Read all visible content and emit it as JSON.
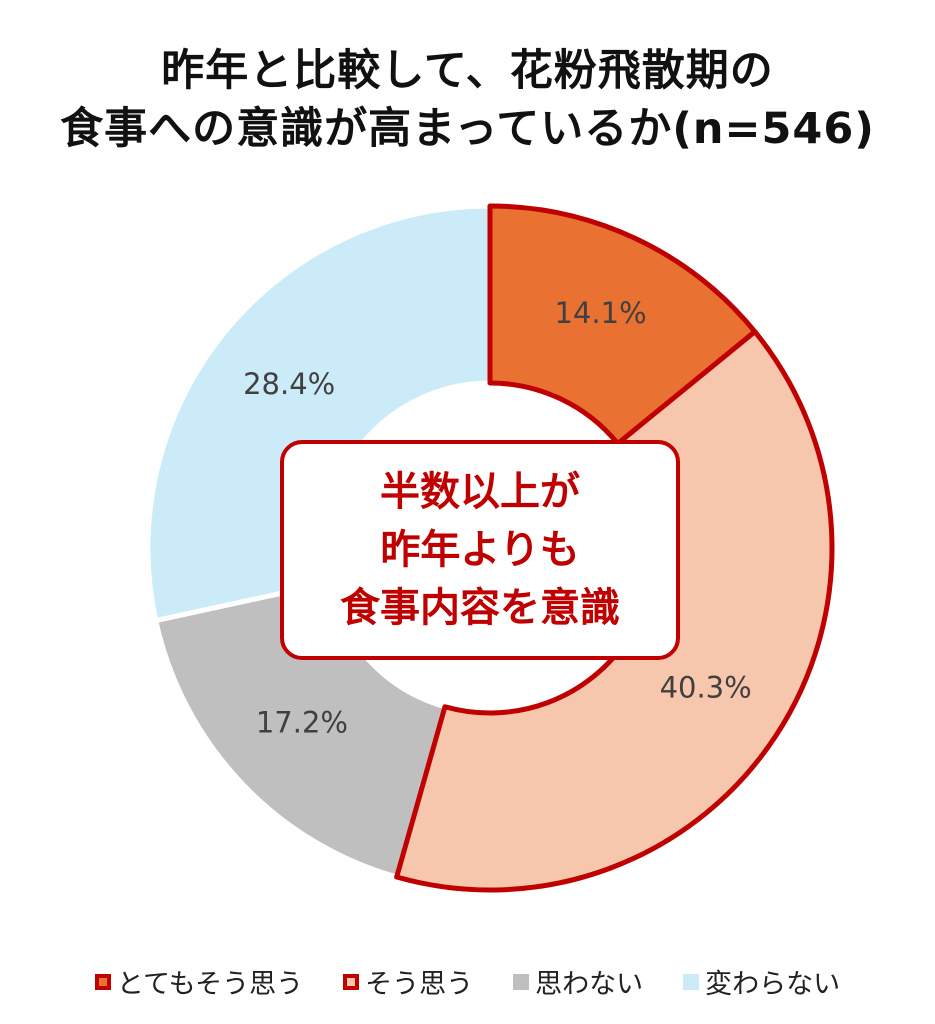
{
  "chart_data": {
    "type": "pie",
    "title_lines": [
      "昨年と比較して、花粉飛散期の",
      "食事への意識が高まっているか(n=546)"
    ],
    "categories": [
      "とてもそう思う",
      "そう思う",
      "思わない",
      "変わらない"
    ],
    "values": [
      14.1,
      40.3,
      17.2,
      28.4
    ],
    "value_labels": [
      "14.1%",
      "40.3%",
      "17.2%",
      "28.4%"
    ],
    "colors": [
      "#e97132",
      "#f6c6ad",
      "#bfbfbf",
      "#cbebf9"
    ],
    "highlight_border_color": "#c00000",
    "highlighted_categories": [
      "とてもそう思う",
      "そう思う"
    ],
    "style": "donut",
    "legend_position": "bottom"
  },
  "callout": {
    "lines": [
      "半数以上が",
      "昨年よりも",
      "食事内容を意識"
    ],
    "color": "#c00000"
  }
}
